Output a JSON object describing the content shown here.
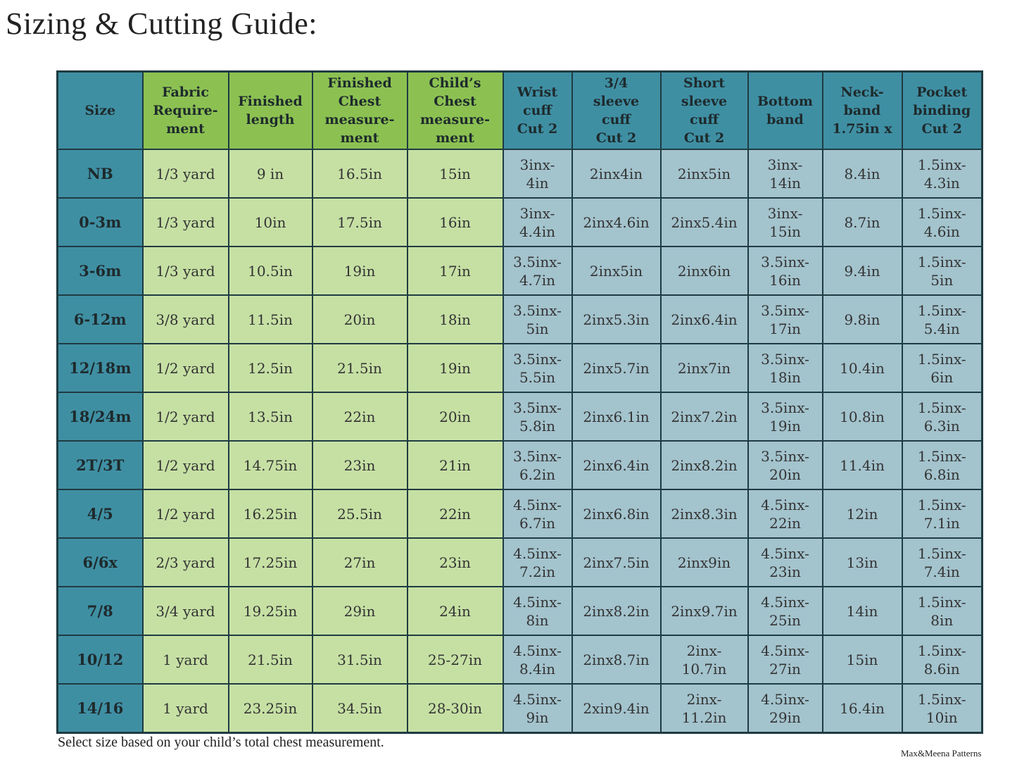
{
  "header": {
    "title": "Sizing & Cutting Guide:"
  },
  "table": {
    "headers": [
      "Size",
      "Fabric\nRequire-\nment",
      "Finished\nlength",
      "Finished\nChest\nmeasure-\nment",
      "Child’s\nChest\nmeasure-\nment",
      "Wrist\ncuff\nCut 2",
      "3/4\nsleeve\ncuff\nCut 2",
      "Short\nsleeve\ncuff\nCut 2",
      "Bottom\nband",
      "Neck-\nband\n1.75in x",
      "Pocket\nbinding\nCut 2"
    ],
    "rows": [
      [
        "NB",
        "1/3 yard",
        "9 in",
        "16.5in",
        "15in",
        "3inx-\n4in",
        "2inx4in",
        "2inx5in",
        "3inx-\n14in",
        "8.4in",
        "1.5inx-\n4.3in"
      ],
      [
        "0-3m",
        "1/3 yard",
        "10in",
        "17.5in",
        "16in",
        "3inx-\n4.4in",
        "2inx4.6in",
        "2inx5.4in",
        "3inx-\n15in",
        "8.7in",
        "1.5inx-\n4.6in"
      ],
      [
        "3-6m",
        "1/3 yard",
        "10.5in",
        "19in",
        "17in",
        "3.5inx-\n4.7in",
        "2inx5in",
        "2inx6in",
        "3.5inx-\n16in",
        "9.4in",
        "1.5inx-\n5in"
      ],
      [
        "6-12m",
        "3/8 yard",
        "11.5in",
        "20in",
        "18in",
        "3.5inx-\n5in",
        "2inx5.3in",
        "2inx6.4in",
        "3.5inx-\n17in",
        "9.8in",
        "1.5inx-\n5.4in"
      ],
      [
        "12/18m",
        "1/2 yard",
        "12.5in",
        "21.5in",
        "19in",
        "3.5inx-\n5.5in",
        "2inx5.7in",
        "2inx7in",
        "3.5inx-\n18in",
        "10.4in",
        "1.5inx-\n6in"
      ],
      [
        "18/24m",
        "1/2 yard",
        "13.5in",
        "22in",
        "20in",
        "3.5inx-\n5.8in",
        "2inx6.1in",
        "2inx7.2in",
        "3.5inx-\n19in",
        "10.8in",
        "1.5inx-\n6.3in"
      ],
      [
        "2T/3T",
        "1/2 yard",
        "14.75in",
        "23in",
        "21in",
        "3.5inx-\n6.2in",
        "2inx6.4in",
        "2inx8.2in",
        "3.5inx-\n20in",
        "11.4in",
        "1.5inx-\n6.8in"
      ],
      [
        "4/5",
        "1/2 yard",
        "16.25in",
        "25.5in",
        "22in",
        "4.5inx-\n6.7in",
        "2inx6.8in",
        "2inx8.3in",
        "4.5inx-\n22in",
        "12in",
        "1.5inx-\n7.1in"
      ],
      [
        "6/6x",
        "2/3 yard",
        "17.25in",
        "27in",
        "23in",
        "4.5inx-\n7.2in",
        "2inx7.5in",
        "2inx9in",
        "4.5inx-\n23in",
        "13in",
        "1.5inx-\n7.4in"
      ],
      [
        "7/8",
        "3/4 yard",
        "19.25in",
        "29in",
        "24in",
        "4.5inx-\n8in",
        "2inx8.2in",
        "2inx9.7in",
        "4.5inx-\n25in",
        "14in",
        "1.5inx-\n8in"
      ],
      [
        "10/12",
        "1 yard",
        "21.5in",
        "31.5in",
        "25-27in",
        "4.5inx-\n8.4in",
        "2inx8.7in",
        "2inx-\n10.7in",
        "4.5inx-\n27in",
        "15in",
        "1.5inx-\n8.6in"
      ],
      [
        "14/16",
        "1 yard",
        "23.25in",
        "34.5in",
        "28-30in",
        "4.5inx-\n9in",
        "2xin9.4in",
        "2inx-\n11.2in",
        "4.5inx-\n29in",
        "16.4in",
        "1.5inx-\n10in"
      ]
    ]
  },
  "footer": {
    "note": "Select size based on your child’s total chest measurement.",
    "credit": "Max&Meena Patterns"
  }
}
